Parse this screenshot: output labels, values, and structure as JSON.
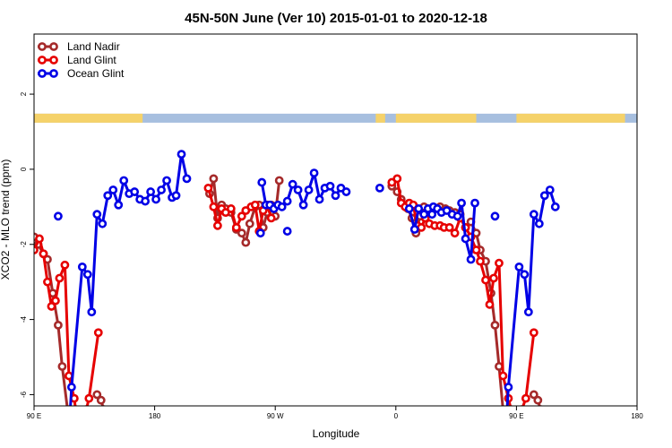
{
  "chart_data": {
    "type": "line",
    "title": "45N-50N June (Ver 10)   2015-01-01 to 2020-12-18",
    "xlabel": "Longitude",
    "ylabel": "XCO2 - MLO trend (ppm)",
    "x_ticks": [
      {
        "value": 90,
        "label": "90 E"
      },
      {
        "value": 180,
        "label": "180"
      },
      {
        "value": 270,
        "label": "90 W"
      },
      {
        "value": 360,
        "label": "0"
      },
      {
        "value": 450,
        "label": "90 E"
      },
      {
        "value": 540,
        "label": "180"
      }
    ],
    "y_ticks": [
      {
        "value": -6,
        "label": "-6"
      },
      {
        "value": -4,
        "label": "-4"
      },
      {
        "value": -2,
        "label": "-2"
      },
      {
        "value": 0,
        "label": "0"
      },
      {
        "value": 2,
        "label": "2"
      }
    ],
    "xlim": [
      90,
      540
    ],
    "ylim": [
      -6.3,
      3.6
    ],
    "land_band": {
      "y": [
        1.24,
        1.48
      ],
      "land_color": "#f5d26a",
      "ocean_color": "#a7bfdf"
    },
    "legend": {
      "position": "top-left"
    },
    "series": [
      {
        "name": "Land Nadir",
        "color": "#a52a2a",
        "segments": [
          [
            [
              90,
              -1.8
            ],
            [
              93,
              -2.0
            ],
            [
              97,
              -2.25
            ],
            [
              100,
              -2.4
            ],
            [
              104,
              -3.3
            ],
            [
              108,
              -4.15
            ],
            [
              111,
              -5.25
            ],
            [
              115,
              -6.4
            ]
          ],
          [
            [
              137,
              -6.0
            ],
            [
              140,
              -6.15
            ],
            [
              142,
              -6.4
            ]
          ],
          [
            [
              221,
              -0.65
            ],
            [
              224,
              -0.25
            ],
            [
              227,
              -1.3
            ],
            [
              230,
              -0.95
            ],
            [
              233,
              -1.05
            ],
            [
              237,
              -1.15
            ],
            [
              241,
              -1.6
            ],
            [
              245,
              -1.7
            ],
            [
              248,
              -1.95
            ],
            [
              251,
              -1.45
            ],
            [
              255,
              -1.0
            ],
            [
              258,
              -0.95
            ],
            [
              261,
              -1.55
            ],
            [
              264,
              -1.15
            ],
            [
              267,
              -0.95
            ],
            [
              270,
              -1.25
            ],
            [
              273,
              -0.3
            ]
          ],
          [
            [
              357,
              -0.45
            ],
            [
              361,
              -0.6
            ],
            [
              364,
              -0.8
            ],
            [
              369,
              -1.05
            ],
            [
              372,
              -1.3
            ],
            [
              375,
              -1.7
            ],
            [
              378,
              -1.25
            ],
            [
              381,
              -1.0
            ],
            [
              385,
              -1.1
            ],
            [
              389,
              -1.05
            ],
            [
              393,
              -1.0
            ],
            [
              397,
              -1.05
            ],
            [
              400,
              -1.1
            ],
            [
              404,
              -1.15
            ],
            [
              408,
              -1.2
            ],
            [
              412,
              -1.55
            ],
            [
              416,
              -1.4
            ],
            [
              420,
              -1.7
            ],
            [
              423,
              -2.15
            ],
            [
              427,
              -2.45
            ],
            [
              431,
              -3.3
            ],
            [
              434,
              -4.15
            ],
            [
              437,
              -5.25
            ],
            [
              440,
              -6.4
            ]
          ],
          [
            [
              463,
              -6.0
            ],
            [
              466,
              -6.15
            ],
            [
              468,
              -6.4
            ]
          ]
        ]
      },
      {
        "name": "Land Glint",
        "color": "#e60000",
        "segments": [
          [
            [
              90,
              -2.15
            ],
            [
              94,
              -1.85
            ],
            [
              97,
              -2.25
            ],
            [
              100,
              -3.0
            ],
            [
              103,
              -3.65
            ],
            [
              106,
              -3.5
            ],
            [
              109,
              -2.9
            ],
            [
              113,
              -2.55
            ],
            [
              116,
              -5.5
            ],
            [
              120,
              -6.1
            ],
            [
              121,
              -6.4
            ]
          ],
          [
            [
              129,
              -6.4
            ],
            [
              131,
              -6.1
            ],
            [
              138,
              -4.35
            ]
          ],
          [
            [
              220,
              -0.5
            ],
            [
              224,
              -1.0
            ],
            [
              227,
              -1.5
            ],
            [
              230,
              -1.05
            ],
            [
              233,
              -1.15
            ],
            [
              237,
              -1.05
            ],
            [
              241,
              -1.55
            ],
            [
              245,
              -1.25
            ],
            [
              248,
              -1.1
            ],
            [
              252,
              -1.0
            ],
            [
              255,
              -0.95
            ],
            [
              258,
              -1.65
            ],
            [
              261,
              -1.1
            ],
            [
              264,
              -0.95
            ],
            [
              267,
              -1.3
            ]
          ],
          [
            [
              357,
              -0.35
            ],
            [
              361,
              -0.25
            ],
            [
              364,
              -0.9
            ],
            [
              367,
              -1.0
            ],
            [
              370,
              -0.9
            ],
            [
              373,
              -0.95
            ],
            [
              376,
              -1.5
            ],
            [
              379,
              -1.55
            ],
            [
              382,
              -1.3
            ],
            [
              385,
              -1.45
            ],
            [
              389,
              -1.5
            ],
            [
              393,
              -1.5
            ],
            [
              396,
              -1.55
            ],
            [
              400,
              -1.55
            ],
            [
              404,
              -1.7
            ],
            [
              408,
              -1.3
            ],
            [
              412,
              -1.55
            ],
            [
              416,
              -1.8
            ],
            [
              420,
              -2.15
            ],
            [
              423,
              -2.45
            ],
            [
              427,
              -2.95
            ],
            [
              430,
              -3.6
            ],
            [
              433,
              -2.9
            ],
            [
              437,
              -2.5
            ],
            [
              440,
              -5.5
            ],
            [
              444,
              -6.1
            ],
            [
              446,
              -6.4
            ]
          ],
          [
            [
              454,
              -6.4
            ],
            [
              457,
              -6.1
            ],
            [
              463,
              -4.35
            ]
          ]
        ]
      },
      {
        "name": "Ocean Glint",
        "color": "#0000e6",
        "segments": [
          [
            [
              117,
              -6.4
            ],
            [
              118,
              -5.8
            ],
            [
              126,
              -2.6
            ],
            [
              130,
              -2.8
            ],
            [
              133,
              -3.8
            ],
            [
              137,
              -1.2
            ],
            [
              141,
              -1.45
            ],
            [
              145,
              -0.7
            ],
            [
              149,
              -0.55
            ],
            [
              153,
              -0.95
            ],
            [
              157,
              -0.3
            ],
            [
              161,
              -0.65
            ],
            [
              165,
              -0.6
            ],
            [
              169,
              -0.8
            ],
            [
              173,
              -0.85
            ],
            [
              177,
              -0.6
            ],
            [
              181,
              -0.8
            ],
            [
              185,
              -0.55
            ],
            [
              189,
              -0.3
            ],
            [
              193,
              -0.75
            ],
            [
              196,
              -0.7
            ],
            [
              200,
              0.4
            ],
            [
              204,
              -0.25
            ]
          ],
          [
            [
              260,
              -0.35
            ],
            [
              263,
              -0.95
            ],
            [
              266,
              -0.95
            ],
            [
              269,
              -1.05
            ],
            [
              272,
              -0.95
            ],
            [
              275,
              -1.0
            ],
            [
              279,
              -0.85
            ],
            [
              283,
              -0.4
            ],
            [
              287,
              -0.55
            ],
            [
              291,
              -0.95
            ],
            [
              295,
              -0.55
            ],
            [
              299,
              -0.1
            ],
            [
              303,
              -0.8
            ],
            [
              307,
              -0.5
            ],
            [
              311,
              -0.45
            ],
            [
              315,
              -0.7
            ],
            [
              319,
              -0.5
            ],
            [
              323,
              -0.6
            ]
          ],
          [
            [
              370,
              -1.05
            ],
            [
              374,
              -1.6
            ],
            [
              377,
              -1.05
            ],
            [
              381,
              -1.2
            ],
            [
              384,
              -1.05
            ],
            [
              387,
              -1.2
            ]
          ],
          [
            [
              388,
              -1.0
            ],
            [
              391,
              -1.05
            ],
            [
              394,
              -1.15
            ],
            [
              398,
              -1.1
            ],
            [
              402,
              -1.2
            ],
            [
              406,
              -1.25
            ],
            [
              409,
              -0.9
            ],
            [
              412,
              -1.85
            ],
            [
              416,
              -2.4
            ],
            [
              419,
              -0.9
            ]
          ],
          [
            [
              443,
              -6.4
            ],
            [
              444,
              -5.8
            ],
            [
              452,
              -2.6
            ],
            [
              456,
              -2.8
            ],
            [
              459,
              -3.8
            ],
            [
              463,
              -1.2
            ],
            [
              467,
              -1.45
            ],
            [
              471,
              -0.7
            ],
            [
              475,
              -0.55
            ],
            [
              479,
              -1.0
            ]
          ]
        ],
        "isolated": [
          [
            108,
            -1.25
          ],
          [
            259,
            -1.7
          ],
          [
            279,
            -1.65
          ],
          [
            434,
            -1.25
          ],
          [
            348,
            -0.5
          ]
        ]
      }
    ]
  }
}
